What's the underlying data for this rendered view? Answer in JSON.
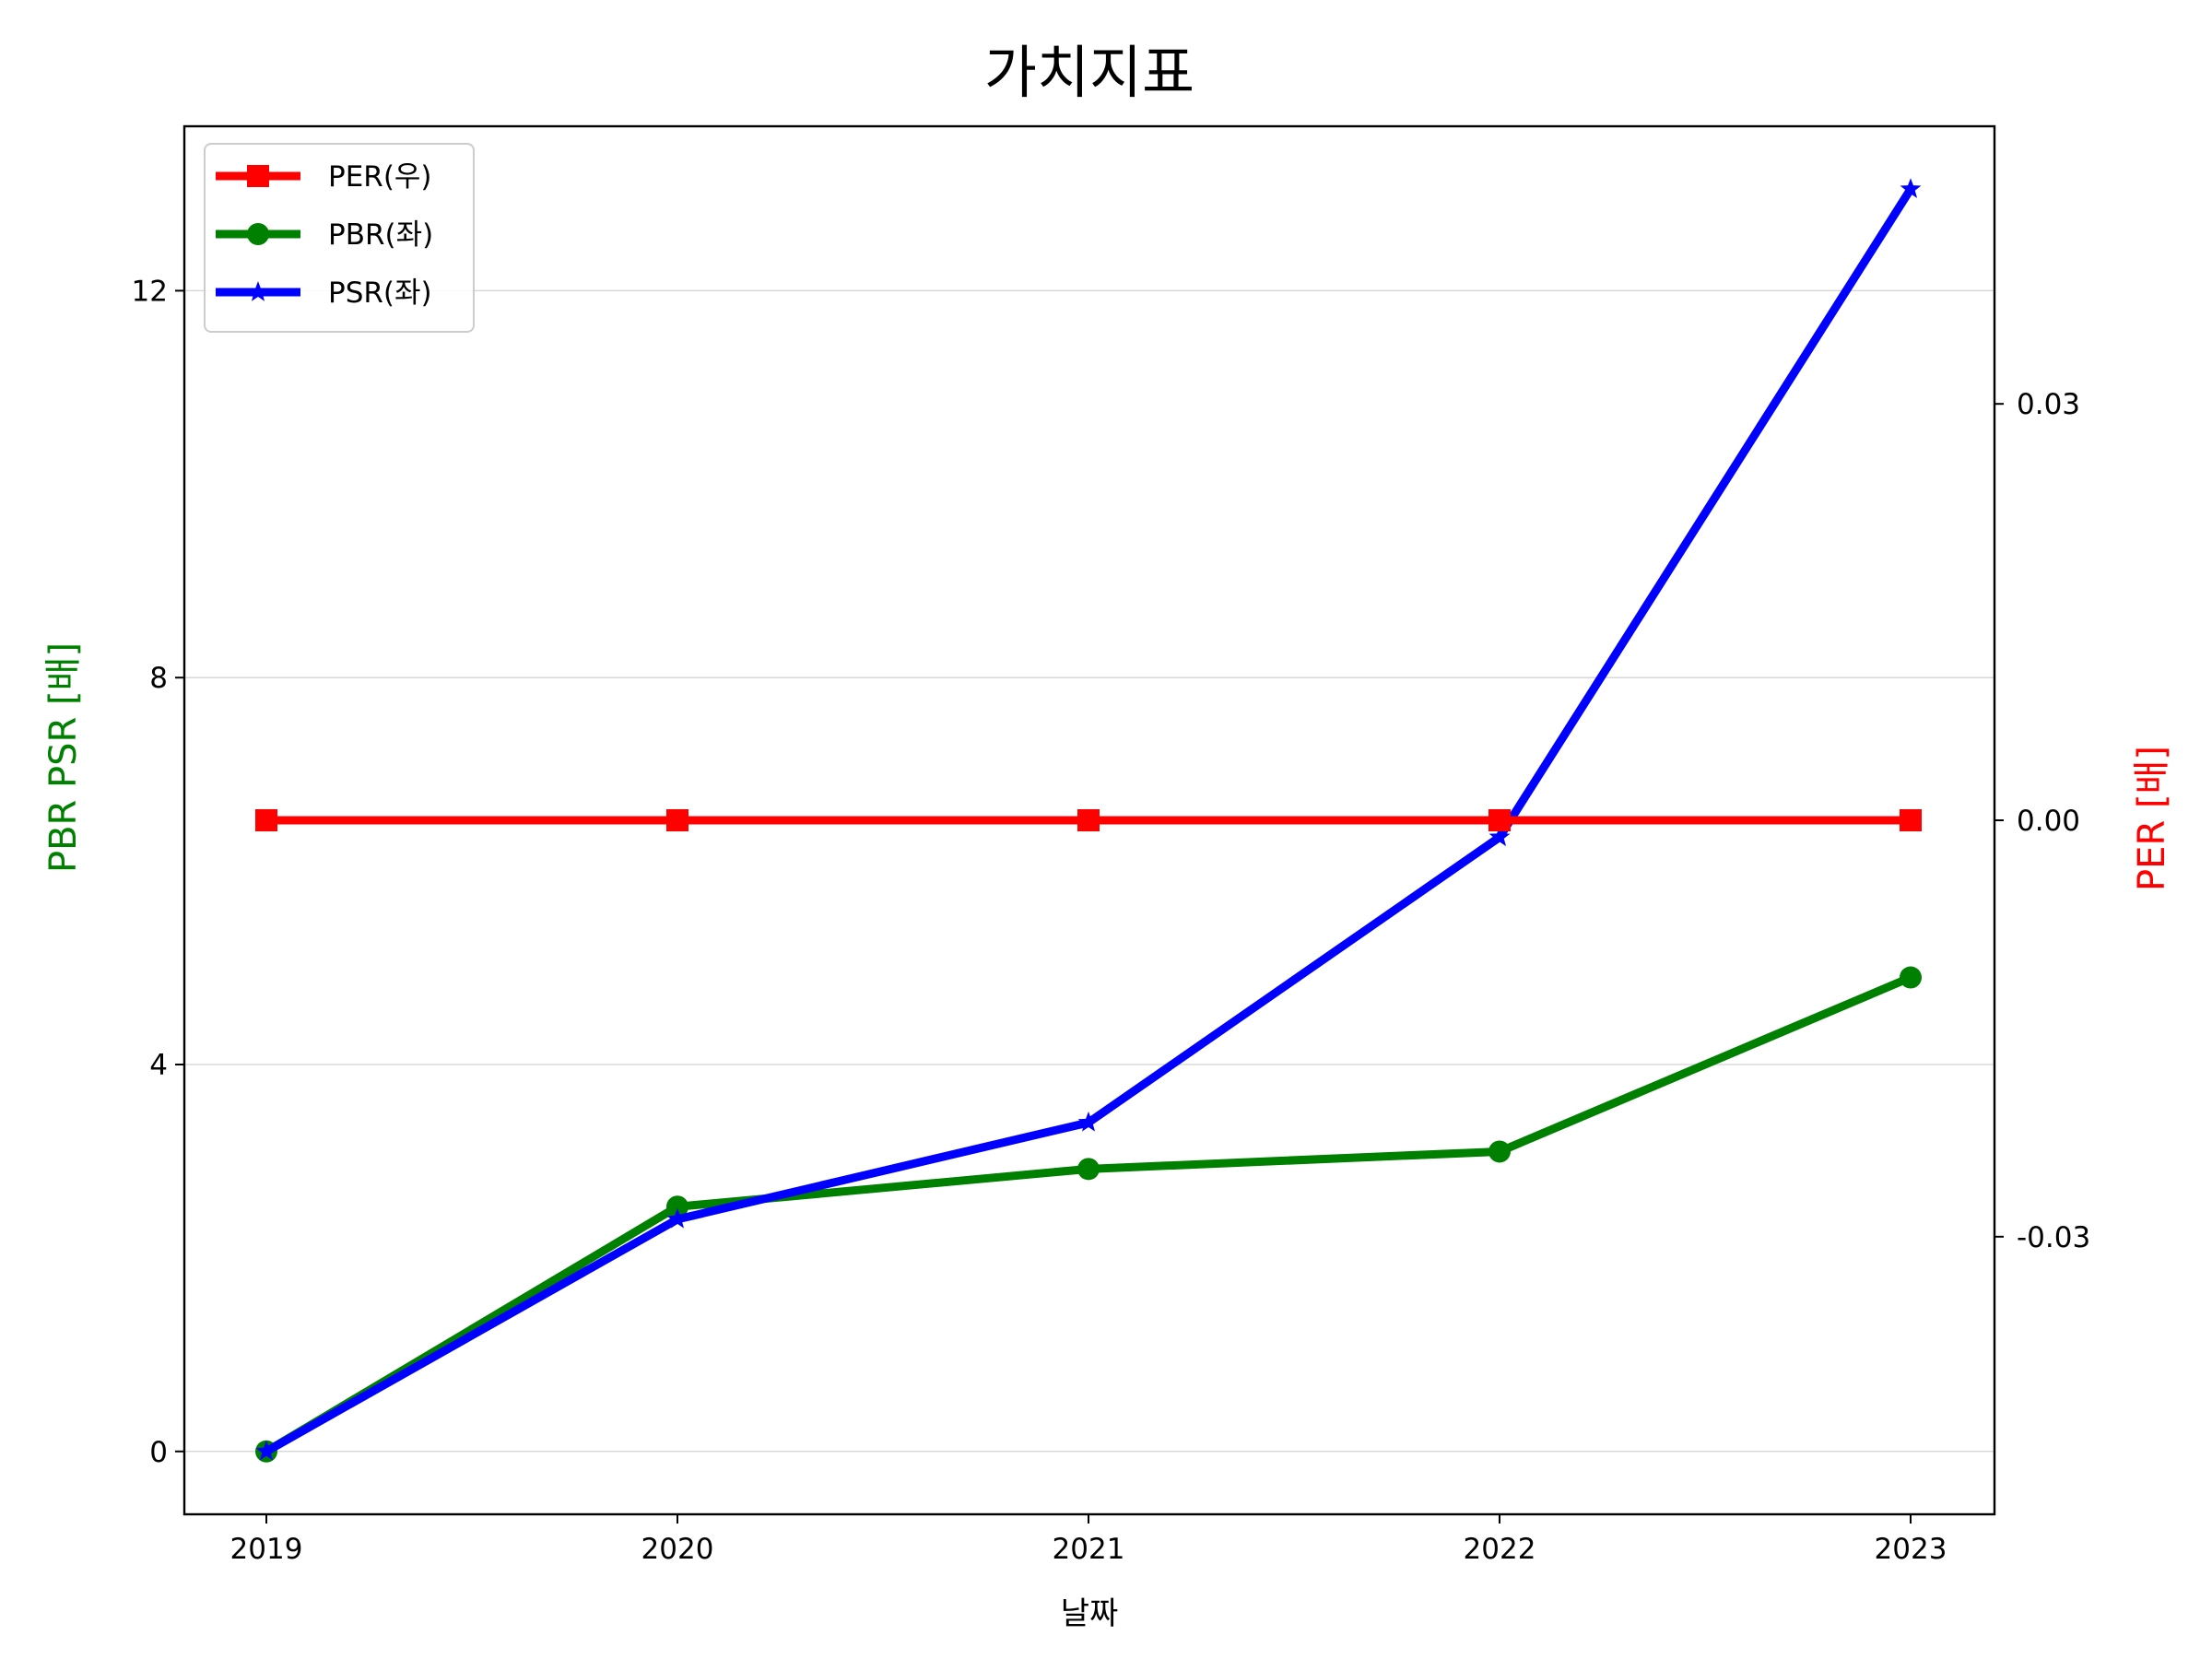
{
  "chart_data": {
    "type": "line",
    "title": "가치지표",
    "xlabel": "날짜",
    "ylabel_left": "PBR PSR [배]",
    "ylabel_right": "PER [배]",
    "categories": [
      "2019",
      "2020",
      "2021",
      "2022",
      "2023"
    ],
    "ylim_left": [
      -0.65,
      13.7
    ],
    "yticks_left": [
      0,
      4,
      8,
      12
    ],
    "ylim_right": [
      -0.05,
      0.05
    ],
    "yticks_right": [
      0.03,
      0.0,
      -0.03
    ],
    "ytick_labels_right": [
      "0.03",
      "0.00",
      "-0.03"
    ],
    "grid": "horizontal (left axis)",
    "legend_position": "top-left",
    "series": [
      {
        "name": "PER(우)",
        "axis": "right",
        "marker": "square",
        "color": "#ff0000",
        "values": [
          0.0,
          0.0,
          0.0,
          0.0,
          0.0
        ]
      },
      {
        "name": "PBR(좌)",
        "axis": "left",
        "marker": "circle",
        "color": "#008000",
        "values": [
          0.0,
          2.53,
          2.92,
          3.1,
          4.9
        ]
      },
      {
        "name": "PSR(좌)",
        "axis": "left",
        "marker": "star",
        "color": "#0000ff",
        "values": [
          0.0,
          2.4,
          3.4,
          6.35,
          13.05
        ]
      }
    ]
  }
}
